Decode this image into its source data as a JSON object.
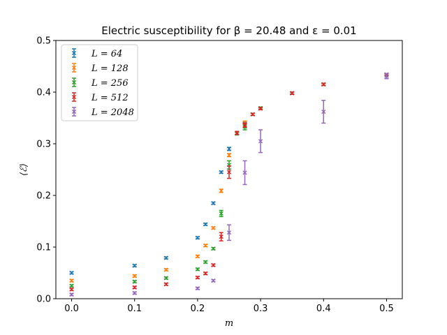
{
  "chart_data": {
    "type": "scatter",
    "title": "Electric susceptibility for β = 20.48 and ε = 0.01",
    "xlabel": "m",
    "ylabel": "⟨ℰ⟩",
    "xlim": [
      -0.025,
      0.525
    ],
    "ylim": [
      0,
      0.5
    ],
    "xticks": [
      "0.0",
      "0.1",
      "0.2",
      "0.3",
      "0.4",
      "0.5"
    ],
    "yticks": [
      "0.0",
      "0.1",
      "0.2",
      "0.3",
      "0.4",
      "0.5"
    ],
    "grid": false,
    "legend_position": "top-left",
    "series": [
      {
        "name": "L = 64",
        "color": "#1f77b4",
        "points": [
          {
            "x": 0.0,
            "y": 0.05,
            "err": 0.002
          },
          {
            "x": 0.1,
            "y": 0.064,
            "err": 0.002
          },
          {
            "x": 0.15,
            "y": 0.079,
            "err": 0.002
          },
          {
            "x": 0.2,
            "y": 0.118,
            "err": 0.002
          },
          {
            "x": 0.2125,
            "y": 0.144,
            "err": 0.002
          },
          {
            "x": 0.225,
            "y": 0.185,
            "err": 0.002
          },
          {
            "x": 0.2375,
            "y": 0.245,
            "err": 0.002
          },
          {
            "x": 0.25,
            "y": 0.29,
            "err": 0.003
          },
          {
            "x": 0.2625,
            "y": 0.32,
            "err": 0.002
          },
          {
            "x": 0.275,
            "y": 0.339,
            "err": 0.002
          },
          {
            "x": 0.2875,
            "y": 0.357,
            "err": 0.002
          },
          {
            "x": 0.3,
            "y": 0.369,
            "err": 0.002
          },
          {
            "x": 0.35,
            "y": 0.398,
            "err": 0.002
          },
          {
            "x": 0.4,
            "y": 0.415,
            "err": 0.002
          },
          {
            "x": 0.5,
            "y": 0.434,
            "err": 0.002
          }
        ]
      },
      {
        "name": "L = 128",
        "color": "#ff7f0e",
        "points": [
          {
            "x": 0.0,
            "y": 0.035,
            "err": 0.002
          },
          {
            "x": 0.1,
            "y": 0.044,
            "err": 0.002
          },
          {
            "x": 0.15,
            "y": 0.056,
            "err": 0.002
          },
          {
            "x": 0.2,
            "y": 0.082,
            "err": 0.002
          },
          {
            "x": 0.2125,
            "y": 0.103,
            "err": 0.002
          },
          {
            "x": 0.225,
            "y": 0.137,
            "err": 0.002
          },
          {
            "x": 0.2375,
            "y": 0.209,
            "err": 0.003
          },
          {
            "x": 0.25,
            "y": 0.278,
            "err": 0.003
          },
          {
            "x": 0.2625,
            "y": 0.32,
            "err": 0.002
          },
          {
            "x": 0.275,
            "y": 0.341,
            "err": 0.003
          },
          {
            "x": 0.2875,
            "y": 0.357,
            "err": 0.002
          },
          {
            "x": 0.3,
            "y": 0.369,
            "err": 0.002
          },
          {
            "x": 0.35,
            "y": 0.398,
            "err": 0.002
          },
          {
            "x": 0.4,
            "y": 0.415,
            "err": 0.002
          },
          {
            "x": 0.5,
            "y": 0.434,
            "err": 0.002
          }
        ]
      },
      {
        "name": "L = 256",
        "color": "#2ca02c",
        "points": [
          {
            "x": 0.0,
            "y": 0.025,
            "err": 0.002
          },
          {
            "x": 0.1,
            "y": 0.033,
            "err": 0.002
          },
          {
            "x": 0.15,
            "y": 0.04,
            "err": 0.002
          },
          {
            "x": 0.2,
            "y": 0.057,
            "err": 0.002
          },
          {
            "x": 0.2125,
            "y": 0.071,
            "err": 0.002
          },
          {
            "x": 0.225,
            "y": 0.097,
            "err": 0.002
          },
          {
            "x": 0.2375,
            "y": 0.165,
            "err": 0.006
          },
          {
            "x": 0.25,
            "y": 0.259,
            "err": 0.008
          },
          {
            "x": 0.2625,
            "y": 0.32,
            "err": 0.003
          },
          {
            "x": 0.275,
            "y": 0.333,
            "err": 0.006
          },
          {
            "x": 0.2875,
            "y": 0.357,
            "err": 0.002
          },
          {
            "x": 0.3,
            "y": 0.369,
            "err": 0.002
          },
          {
            "x": 0.35,
            "y": 0.398,
            "err": 0.002
          },
          {
            "x": 0.4,
            "y": 0.415,
            "err": 0.002
          },
          {
            "x": 0.5,
            "y": 0.434,
            "err": 0.002
          }
        ]
      },
      {
        "name": "L = 512",
        "color": "#d62728",
        "points": [
          {
            "x": 0.0,
            "y": 0.018,
            "err": 0.002
          },
          {
            "x": 0.1,
            "y": 0.022,
            "err": 0.002
          },
          {
            "x": 0.15,
            "y": 0.028,
            "err": 0.002
          },
          {
            "x": 0.2,
            "y": 0.041,
            "err": 0.002
          },
          {
            "x": 0.2125,
            "y": 0.049,
            "err": 0.002
          },
          {
            "x": 0.225,
            "y": 0.065,
            "err": 0.002
          },
          {
            "x": 0.2375,
            "y": 0.12,
            "err": 0.008
          },
          {
            "x": 0.25,
            "y": 0.245,
            "err": 0.012
          },
          {
            "x": 0.2625,
            "y": 0.321,
            "err": 0.003
          },
          {
            "x": 0.275,
            "y": 0.336,
            "err": 0.004
          },
          {
            "x": 0.2875,
            "y": 0.357,
            "err": 0.002
          },
          {
            "x": 0.3,
            "y": 0.368,
            "err": 0.002
          },
          {
            "x": 0.35,
            "y": 0.398,
            "err": 0.002
          },
          {
            "x": 0.4,
            "y": 0.415,
            "err": 0.002
          },
          {
            "x": 0.5,
            "y": 0.434,
            "err": 0.002
          }
        ]
      },
      {
        "name": "L = 2048",
        "color": "#9467bd",
        "points": [
          {
            "x": 0.0,
            "y": 0.008,
            "err": 0.002
          },
          {
            "x": 0.1,
            "y": 0.011,
            "err": 0.002
          },
          {
            "x": 0.2,
            "y": 0.02,
            "err": 0.002
          },
          {
            "x": 0.225,
            "y": 0.035,
            "err": 0.002
          },
          {
            "x": 0.25,
            "y": 0.128,
            "err": 0.015
          },
          {
            "x": 0.275,
            "y": 0.244,
            "err": 0.023
          },
          {
            "x": 0.3,
            "y": 0.305,
            "err": 0.022
          },
          {
            "x": 0.4,
            "y": 0.362,
            "err": 0.022
          },
          {
            "x": 0.5,
            "y": 0.431,
            "err": 0.005
          }
        ]
      }
    ]
  }
}
